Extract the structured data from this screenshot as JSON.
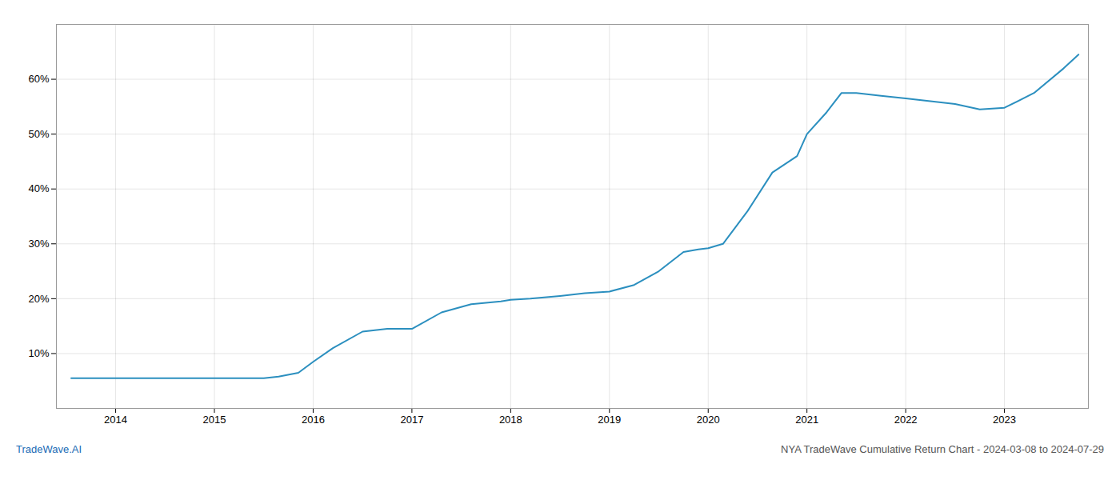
{
  "chart_data": {
    "type": "line",
    "title": "NYA TradeWave Cumulative Return Chart - 2024-03-08 to 2024-07-29",
    "annotations": [
      "TradeWave.AI"
    ],
    "x": [
      2013.55,
      2013.75,
      2014.0,
      2014.25,
      2014.5,
      2014.75,
      2015.0,
      2015.25,
      2015.5,
      2015.65,
      2015.85,
      2016.0,
      2016.2,
      2016.5,
      2016.75,
      2017.0,
      2017.3,
      2017.6,
      2017.9,
      2018.0,
      2018.2,
      2018.5,
      2018.75,
      2019.0,
      2019.25,
      2019.5,
      2019.75,
      2019.9,
      2020.0,
      2020.15,
      2020.4,
      2020.65,
      2020.9,
      2021.0,
      2021.2,
      2021.35,
      2021.5,
      2021.75,
      2022.0,
      2022.25,
      2022.5,
      2022.75,
      2023.0,
      2023.3,
      2023.6,
      2023.75
    ],
    "values": [
      5.5,
      5.5,
      5.5,
      5.5,
      5.5,
      5.5,
      5.5,
      5.5,
      5.5,
      5.8,
      6.5,
      8.5,
      11.0,
      14.0,
      14.5,
      14.5,
      17.5,
      19.0,
      19.5,
      19.8,
      20.0,
      20.5,
      21.0,
      21.3,
      22.5,
      25.0,
      28.5,
      29.0,
      29.2,
      30.0,
      36.0,
      43.0,
      46.0,
      50.0,
      54.0,
      57.5,
      57.5,
      57.0,
      56.5,
      56.0,
      55.5,
      54.5,
      54.8,
      57.5,
      62.0,
      64.5
    ],
    "color": "#2b8fbf",
    "xlim": [
      2013.4,
      2023.85
    ],
    "xticks": [
      2014,
      2015,
      2016,
      2017,
      2018,
      2019,
      2020,
      2021,
      2022,
      2023
    ],
    "ylim": [
      0,
      70
    ],
    "yticks": [
      {
        "value": 10,
        "label": "10%"
      },
      {
        "value": 20,
        "label": "20%"
      },
      {
        "value": 30,
        "label": "30%"
      },
      {
        "value": 40,
        "label": "40%"
      },
      {
        "value": 50,
        "label": "50%"
      },
      {
        "value": 60,
        "label": "60%"
      }
    ],
    "grid": true
  }
}
